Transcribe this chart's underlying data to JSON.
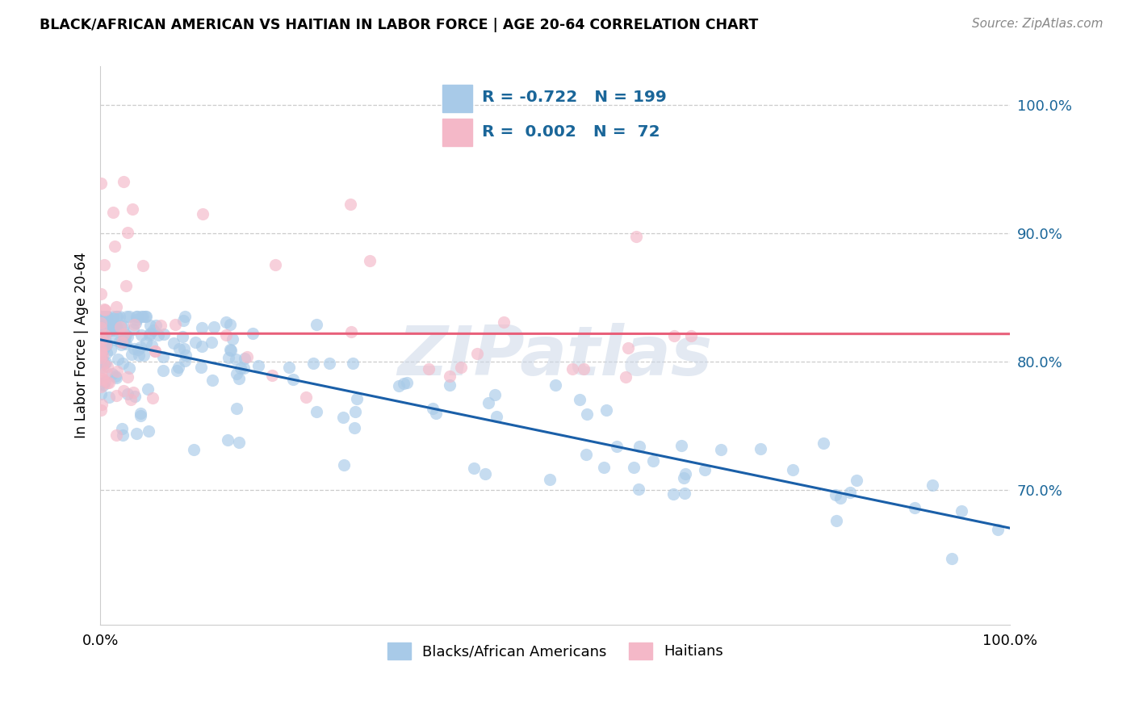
{
  "title": "BLACK/AFRICAN AMERICAN VS HAITIAN IN LABOR FORCE | AGE 20-64 CORRELATION CHART",
  "source": "Source: ZipAtlas.com",
  "ylabel": "In Labor Force | Age 20-64",
  "legend_label1": "Blacks/African Americans",
  "legend_label2": "Haitians",
  "R1": -0.722,
  "N1": 199,
  "R2": 0.002,
  "N2": 72,
  "color_blue": "#a8caE8",
  "color_pink": "#f4b8c8",
  "color_blue_line": "#1a5fa8",
  "color_pink_line": "#e8607a",
  "watermark": "ZIPatlas",
  "xlim": [
    0.0,
    1.0
  ],
  "ylim": [
    0.595,
    1.03
  ],
  "yticks": [
    0.7,
    0.8,
    0.9,
    1.0
  ],
  "ytick_labels": [
    "70.0%",
    "80.0%",
    "90.0%",
    "100.0%"
  ],
  "stat_color": "#1a6699",
  "grid_color": "#cccccc",
  "legend_border_color": "#aaaaaa"
}
